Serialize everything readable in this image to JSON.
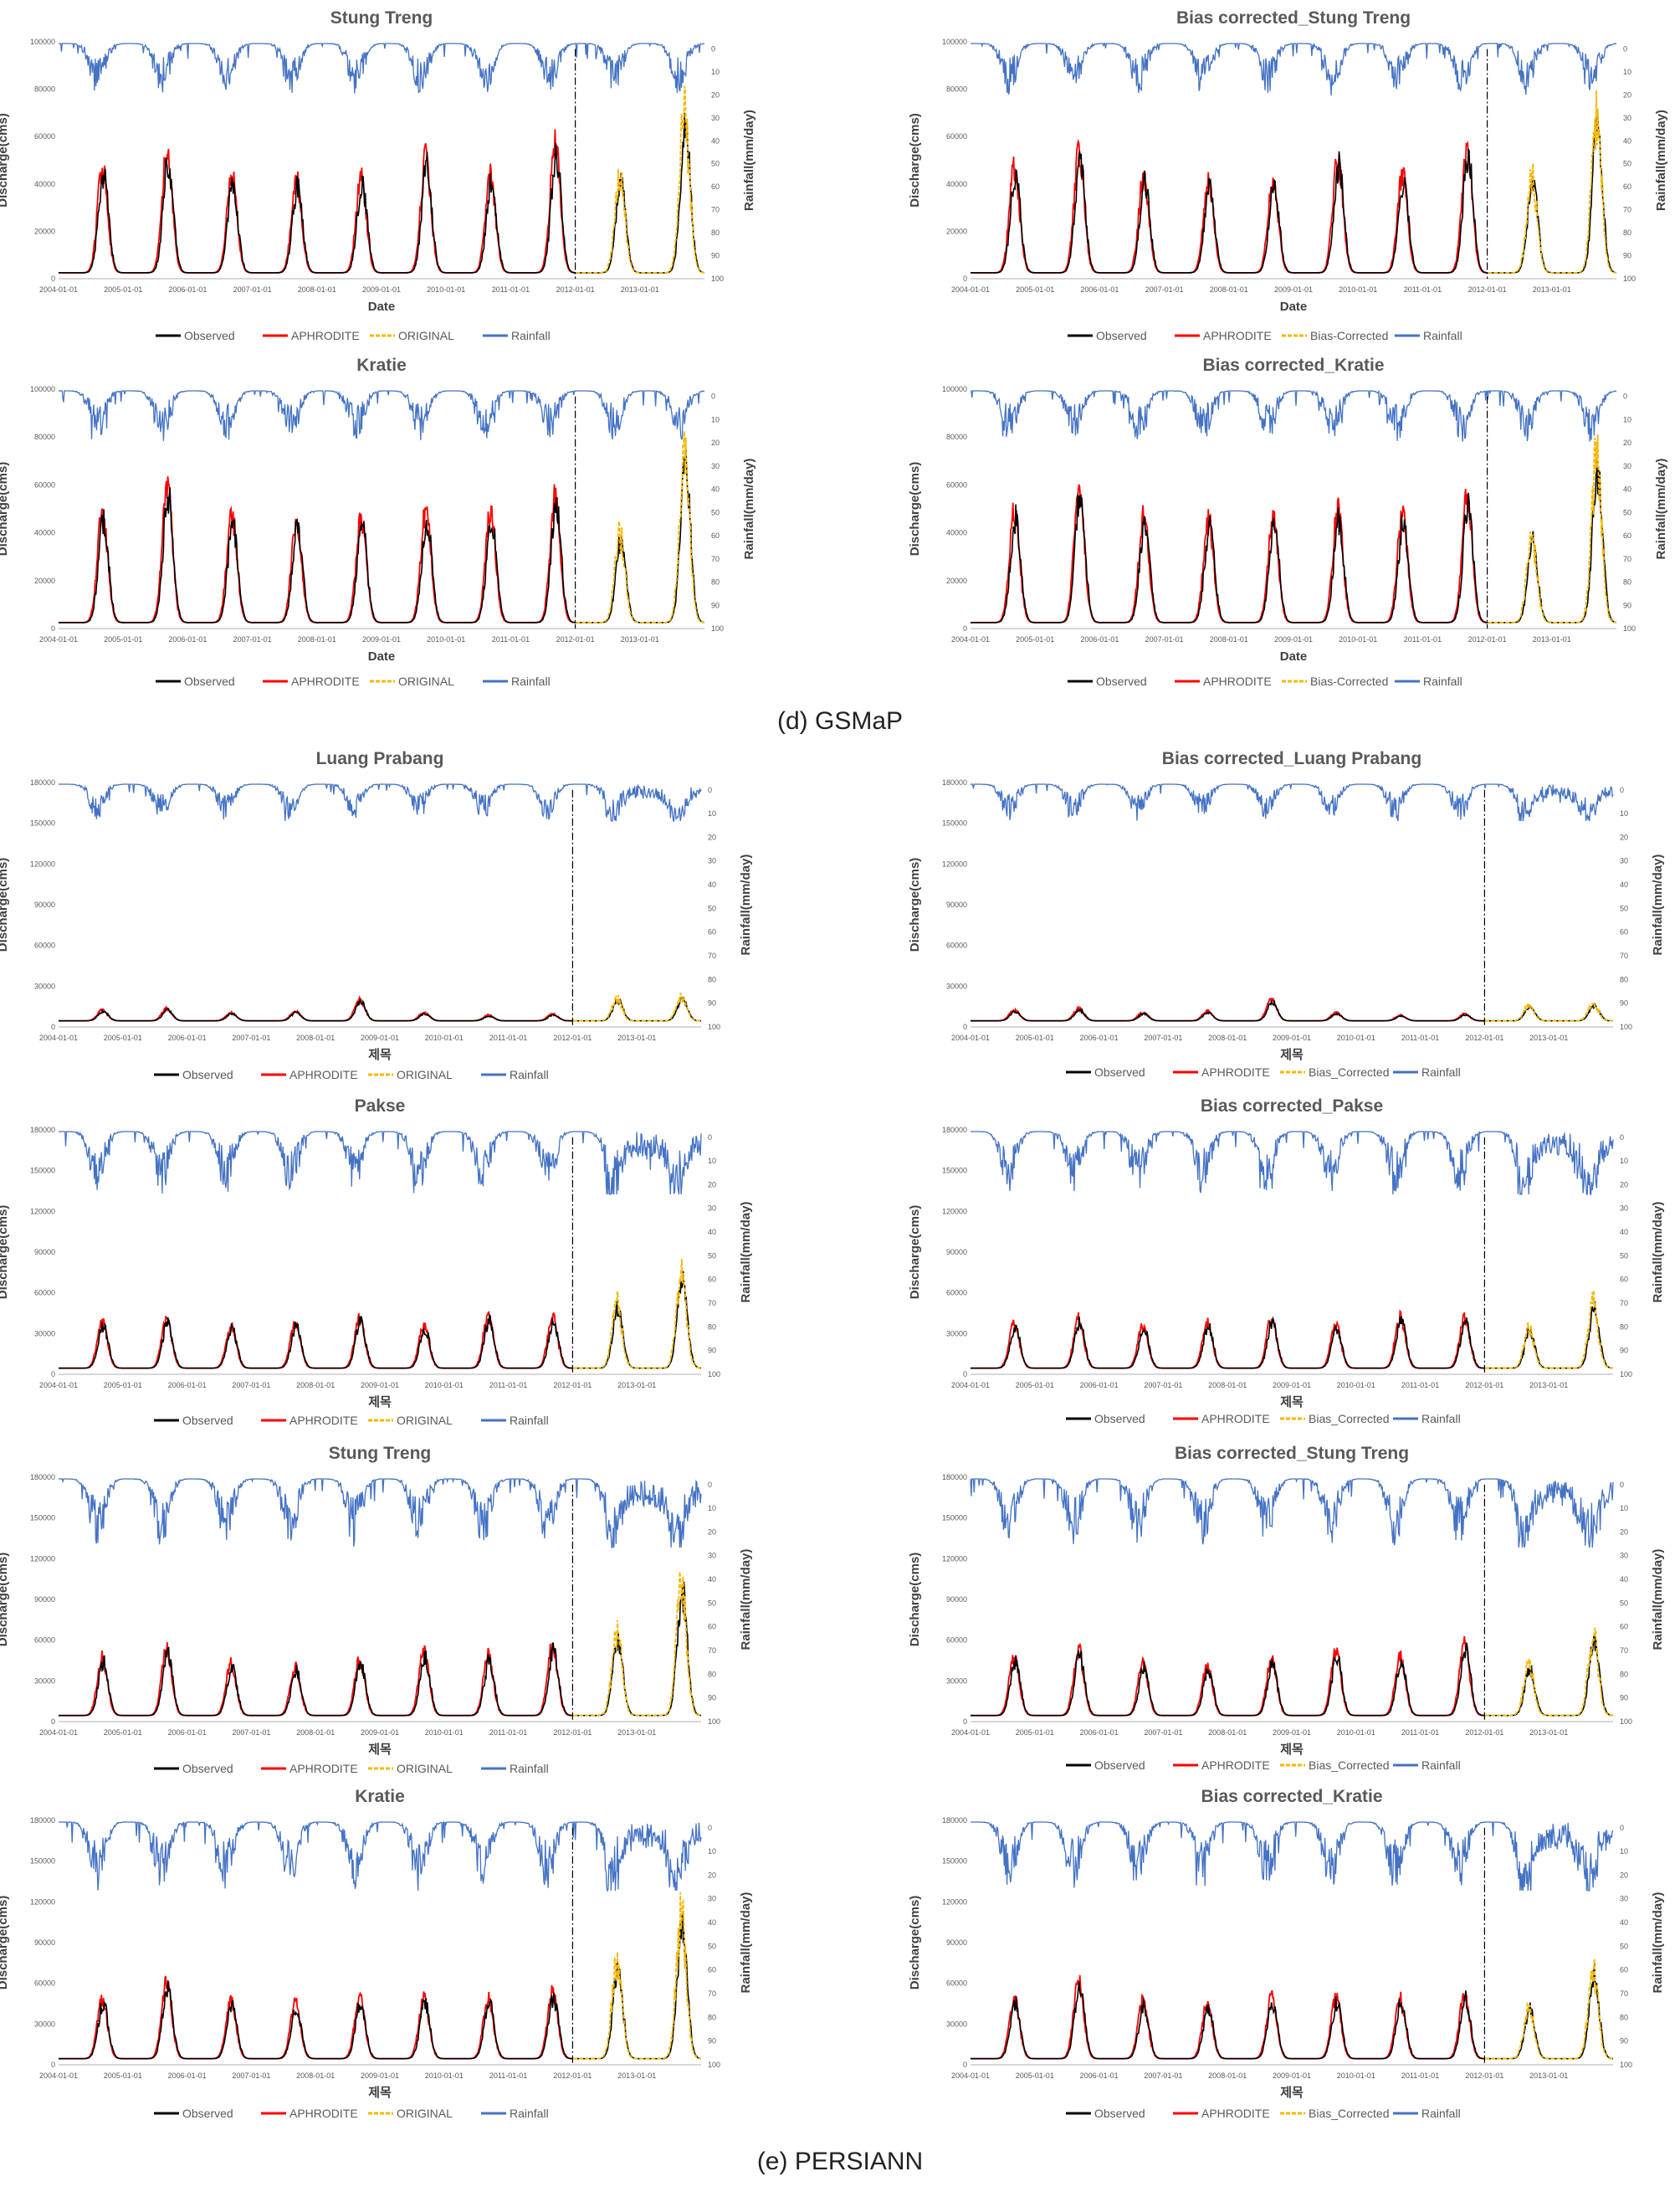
{
  "captions": {
    "gsmap": "(d) GSMaP",
    "persiann": "(e) PERSIANN"
  },
  "colors": {
    "observed": "#000000",
    "aphrodite": "#ff0000",
    "original": "#f5b800",
    "rainfall": "#4472c4"
  },
  "legend": [
    "Observed",
    "APHRODITE",
    "ORIGINAL",
    "Rainfall"
  ],
  "date_ticks": [
    "2004-01-01",
    "2005-01-01",
    "2006-01-01",
    "2007-01-01",
    "2008-01-01",
    "2009-01-01",
    "2010-01-01",
    "2011-01-01",
    "2012-01-01",
    "2013-01-01"
  ],
  "rain_ticks": [
    "0",
    "10",
    "20",
    "30",
    "40",
    "50",
    "60",
    "70",
    "80",
    "90",
    "100"
  ],
  "chart_data": [
    {
      "type": "line",
      "title": "Stung Treng",
      "xlabel": "Date",
      "ylabel": "Discharge(cms)",
      "y2label": "Rainfall(mm/day)",
      "ylim": [
        0,
        100000
      ],
      "yticks": [
        "0",
        "20000",
        "40000",
        "60000",
        "80000",
        "100000"
      ],
      "split_date": "2012-01-01",
      "peaks": [
        50000,
        57000,
        46000,
        44000,
        45000,
        54000,
        46000,
        60000
      ],
      "peaks_valid": [
        42000,
        66000
      ],
      "legend": [
        "Observed",
        "APHRODITE",
        "ORIGINAL",
        "Rainfall"
      ],
      "legend_position": "bottom"
    },
    {
      "type": "line",
      "title": "Bias corrected_Stung Treng",
      "xlabel": "Date",
      "ylabel": "Discharge(cms)",
      "y2label": "Rainfall(mm/day)",
      "ylim": [
        0,
        100000
      ],
      "yticks": [
        "0",
        "20000",
        "40000",
        "60000",
        "80000",
        "100000"
      ],
      "split_date": "2012-01-01",
      "peaks": [
        50000,
        57000,
        46000,
        44000,
        45000,
        54000,
        46000,
        60000
      ],
      "peaks_valid": [
        42000,
        66000
      ],
      "legend": [
        "Observed",
        "APHRODITE",
        "Bias-Corrected",
        "Rainfall"
      ],
      "legend_position": "bottom"
    },
    {
      "type": "line",
      "title": "Kratie",
      "xlabel": "Date",
      "ylabel": "Discharge(cms)",
      "y2label": "Rainfall(mm/day)",
      "ylim": [
        0,
        100000
      ],
      "yticks": [
        "0",
        "20000",
        "40000",
        "60000",
        "80000",
        "100000"
      ],
      "split_date": "2012-01-01",
      "peaks": [
        52000,
        64000,
        50000,
        48000,
        49000,
        52000,
        51000,
        58000
      ],
      "peaks_valid": [
        37000,
        70000
      ],
      "legend": [
        "Observed",
        "APHRODITE",
        "ORIGINAL",
        "Rainfall"
      ],
      "legend_position": "bottom"
    },
    {
      "type": "line",
      "title": "Bias corrected_Kratie",
      "xlabel": "Date",
      "ylabel": "Discharge(cms)",
      "y2label": "Rainfall(mm/day)",
      "ylim": [
        0,
        100000
      ],
      "yticks": [
        "0",
        "20000",
        "40000",
        "60000",
        "80000",
        "100000"
      ],
      "split_date": "2012-01-01",
      "peaks": [
        52000,
        64000,
        50000,
        48000,
        49000,
        52000,
        51000,
        58000
      ],
      "peaks_valid": [
        37000,
        68000
      ],
      "legend": [
        "Observed",
        "APHRODITE",
        "Bias-Corrected",
        "Rainfall"
      ],
      "legend_position": "bottom"
    },
    {
      "type": "line",
      "title": "Luang Prabang",
      "xlabel": "제목",
      "ylabel": "Discharge(cms)",
      "y2label": "Rainfall(mm/day)",
      "ylim": [
        0,
        180000
      ],
      "yticks": [
        "0",
        "30000",
        "60000",
        "90000",
        "120000",
        "150000",
        "180000"
      ],
      "split_date": "2012-01-01",
      "peaks": [
        13000,
        14000,
        11000,
        12000,
        21000,
        11000,
        9000,
        10000
      ],
      "peaks_valid": [
        20000,
        21000
      ],
      "legend": [
        "Observed",
        "APHRODITE",
        "ORIGINAL",
        "Rainfall"
      ],
      "legend_position": "bottom"
    },
    {
      "type": "line",
      "title": "Bias corrected_Luang Prabang",
      "xlabel": "제목",
      "ylabel": "Discharge(cms)",
      "y2label": "Rainfall(mm/day)",
      "ylim": [
        0,
        180000
      ],
      "yticks": [
        "0",
        "30000",
        "60000",
        "90000",
        "120000",
        "150000",
        "180000"
      ],
      "split_date": "2012-01-01",
      "peaks": [
        13000,
        14000,
        11000,
        12000,
        21000,
        11000,
        9000,
        10000
      ],
      "peaks_valid": [
        15000,
        16000
      ],
      "legend": [
        "Observed",
        "APHRODITE",
        "Bias_Corrected",
        "Rainfall"
      ],
      "legend_position": "bottom"
    },
    {
      "type": "line",
      "title": "Pakse",
      "xlabel": "제목",
      "ylabel": "Discharge(cms)",
      "y2label": "Rainfall(mm/day)",
      "ylim": [
        0,
        180000
      ],
      "yticks": [
        "0",
        "30000",
        "60000",
        "90000",
        "120000",
        "150000",
        "180000"
      ],
      "split_date": "2012-01-01",
      "peaks": [
        40000,
        43000,
        38000,
        40000,
        44000,
        38000,
        45000,
        44000
      ],
      "peaks_valid": [
        50000,
        72000
      ],
      "legend": [
        "Observed",
        "APHRODITE",
        "ORIGINAL",
        "Rainfall"
      ],
      "legend_position": "bottom"
    },
    {
      "type": "line",
      "title": "Bias corrected_Pakse",
      "xlabel": "제목",
      "ylabel": "Discharge(cms)",
      "y2label": "Rainfall(mm/day)",
      "ylim": [
        0,
        180000
      ],
      "yticks": [
        "0",
        "30000",
        "60000",
        "90000",
        "120000",
        "150000",
        "180000"
      ],
      "split_date": "2012-01-01",
      "peaks": [
        40000,
        43000,
        38000,
        40000,
        44000,
        38000,
        45000,
        44000
      ],
      "peaks_valid": [
        32000,
        50000
      ],
      "legend": [
        "Observed",
        "APHRODITE",
        "Bias_Corrected",
        "Rainfall"
      ],
      "legend_position": "bottom"
    },
    {
      "type": "line",
      "title": "Stung Treng",
      "xlabel": "제목",
      "ylabel": "Discharge(cms)",
      "y2label": "Rainfall(mm/day)",
      "ylim": [
        0,
        180000
      ],
      "yticks": [
        "0",
        "30000",
        "60000",
        "90000",
        "120000",
        "150000",
        "180000"
      ],
      "split_date": "2012-01-01",
      "peaks": [
        50000,
        56000,
        45000,
        43000,
        48000,
        54000,
        51000,
        60000
      ],
      "peaks_valid": [
        62000,
        98000
      ],
      "legend": [
        "Observed",
        "APHRODITE",
        "ORIGINAL",
        "Rainfall"
      ],
      "legend_position": "bottom"
    },
    {
      "type": "line",
      "title": "Bias corrected_Stung Treng",
      "xlabel": "제목",
      "ylabel": "Discharge(cms)",
      "y2label": "Rainfall(mm/day)",
      "ylim": [
        0,
        180000
      ],
      "yticks": [
        "0",
        "30000",
        "60000",
        "90000",
        "120000",
        "150000",
        "180000"
      ],
      "split_date": "2012-01-01",
      "peaks": [
        50000,
        56000,
        45000,
        43000,
        48000,
        54000,
        51000,
        60000
      ],
      "peaks_valid": [
        40000,
        62000
      ],
      "legend": [
        "Observed",
        "APHRODITE",
        "Bias_Corrected",
        "Rainfall"
      ],
      "legend_position": "bottom"
    },
    {
      "type": "line",
      "title": "Kratie",
      "xlabel": "제목",
      "ylabel": "Discharge(cms)",
      "y2label": "Rainfall(mm/day)",
      "ylim": [
        0,
        180000
      ],
      "yticks": [
        "0",
        "30000",
        "60000",
        "90000",
        "120000",
        "150000",
        "180000"
      ],
      "split_date": "2012-01-01",
      "peaks": [
        52000,
        65000,
        50000,
        48000,
        52000,
        52000,
        52000,
        56000
      ],
      "peaks_valid": [
        70000,
        105000
      ],
      "legend": [
        "Observed",
        "APHRODITE",
        "ORIGINAL",
        "Rainfall"
      ],
      "legend_position": "bottom"
    },
    {
      "type": "line",
      "title": "Bias corrected_Kratie",
      "xlabel": "제목",
      "ylabel": "Discharge(cms)",
      "y2label": "Rainfall(mm/day)",
      "ylim": [
        0,
        180000
      ],
      "yticks": [
        "0",
        "30000",
        "60000",
        "90000",
        "120000",
        "150000",
        "180000"
      ],
      "split_date": "2012-01-01",
      "peaks": [
        52000,
        65000,
        50000,
        48000,
        52000,
        52000,
        52000,
        56000
      ],
      "peaks_valid": [
        42000,
        66000
      ],
      "legend": [
        "Observed",
        "APHRODITE",
        "Bias_Corrected",
        "Rainfall"
      ],
      "legend_position": "bottom"
    }
  ]
}
